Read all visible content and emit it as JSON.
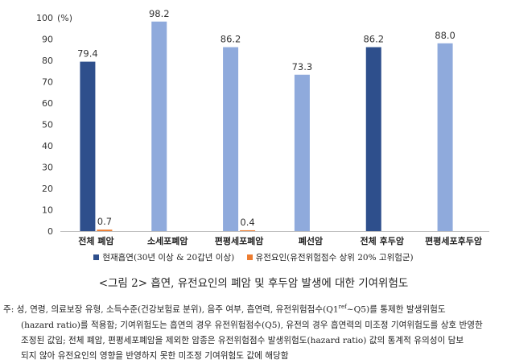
{
  "chart_data": {
    "type": "bar",
    "unit_label": "(%)",
    "ylim": [
      0,
      100
    ],
    "yticks": [
      0,
      10,
      20,
      30,
      40,
      50,
      60,
      70,
      80,
      90,
      100
    ],
    "grid": false,
    "legend_position": "bottom",
    "categories": [
      "전체 폐암",
      "소세포폐암",
      "편평세포폐암",
      "폐선암",
      "전체 후두암",
      "편평세포후두암"
    ],
    "bars": [
      {
        "category_index": 0,
        "series_index": 0,
        "value": 79.4,
        "label": "79.4",
        "color": "#2e4f8c"
      },
      {
        "category_index": 0,
        "series_index": 1,
        "value": 0.7,
        "label": "0.7",
        "color": "#ed7d31"
      },
      {
        "category_index": 1,
        "series_index": 0,
        "value": 98.2,
        "label": "98.2",
        "color": "#8faadc"
      },
      {
        "category_index": 2,
        "series_index": 0,
        "value": 86.2,
        "label": "86.2",
        "color": "#8faadc"
      },
      {
        "category_index": 2,
        "series_index": 1,
        "value": 0.4,
        "label": "0.4",
        "color": "#ed7d31"
      },
      {
        "category_index": 3,
        "series_index": 0,
        "value": 73.3,
        "label": "73.3",
        "color": "#8faadc"
      },
      {
        "category_index": 4,
        "series_index": 0,
        "value": 86.2,
        "label": "86.2",
        "color": "#2e4f8c"
      },
      {
        "category_index": 5,
        "series_index": 0,
        "value": 88.0,
        "label": "88.0",
        "color": "#8faadc"
      }
    ],
    "series": [
      {
        "name": "현재흡연(30년 이상 & 20갑년 이상)",
        "color": "#2e4f8c"
      },
      {
        "name": "유전요인(유전위험점수 상위 20% 고위험군)",
        "color": "#ed7d31"
      }
    ]
  },
  "caption": "<그림 2> 흡연, 유전요인의 폐암 및 후두암 발생에 대한 기여위험도",
  "note": {
    "line1": "주: 성, 연령, 의료보장 유형, 소득수준(건강보험료 분위), 음주 여부, 흡연력, 유전위험점수(Q1",
    "sup": "ref",
    "line1_end": "~Q5)를 통제한 발생위험도",
    "line2": "(hazard ratio)를 적용함; 기여위험도는 흡연의 경우 유전위험점수(Q5), 유전의 경우 흡연력의 미조정 기여위험도를 상호 반영한",
    "line3": "조정된 값임; 전체 폐암, 편평세포폐암을 제외한 암종은 유전위험점수 발생위험도(hazard ratio) 값의 통계적 유의성이 담보",
    "line4": "되지 않아 유전요인의 영향을 반영하지 못한 미조정 기여위험도 값에 해당함"
  }
}
